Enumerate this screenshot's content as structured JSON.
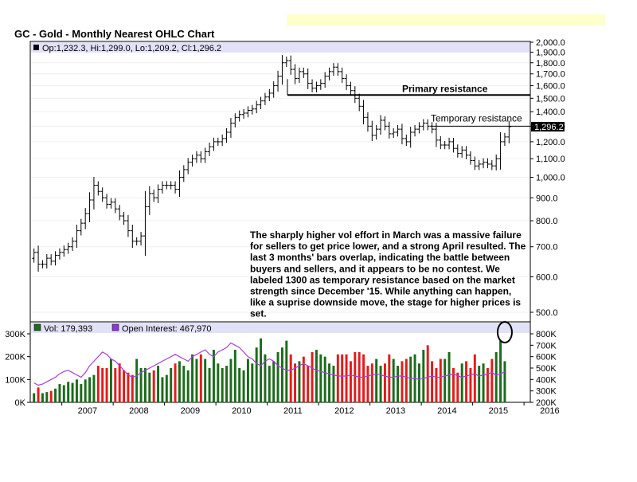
{
  "chart_data": {
    "type": "ohlc",
    "title": "GC - Gold - Monthly Nearest OHLC Chart",
    "info_line": "Op:1,232.3, Hi:1,299.0, Lo:1,209.2, Cl:1,296.2",
    "price_axis": {
      "ylim": [
        500,
        2000
      ],
      "scale": "log",
      "ticks": [
        "2,000.0",
        "1,900.0",
        "1,800.0",
        "1,700.0",
        "1,600.0",
        "1,500.0",
        "1,400.0",
        "1,300.0",
        "1,200.0",
        "1,100.0",
        "1,000.0",
        "900.0",
        "800.0",
        "700.0",
        "600.0",
        "500.0"
      ]
    },
    "last_price_label": "1,296.2",
    "x_ticks": [
      "2007",
      "2008",
      "2009",
      "2010",
      "2011",
      "2012",
      "2013",
      "2014",
      "2015",
      "2016"
    ],
    "price_series_approx": [
      680,
      640,
      640,
      660,
      650,
      670,
      680,
      690,
      700,
      720,
      760,
      790,
      830,
      890,
      960,
      930,
      900,
      870,
      880,
      850,
      820,
      800,
      760,
      720,
      720,
      740,
      860,
      920,
      900,
      940,
      960,
      960,
      960,
      940,
      1000,
      1040,
      1080,
      1100,
      1120,
      1100,
      1140,
      1170,
      1200,
      1200,
      1220,
      1260,
      1320,
      1360,
      1380,
      1390,
      1410,
      1420,
      1450,
      1480,
      1510,
      1540,
      1600,
      1680,
      1800,
      1820,
      1740,
      1660,
      1720,
      1700,
      1620,
      1580,
      1600,
      1620,
      1680,
      1720,
      1760,
      1720,
      1660,
      1600,
      1560,
      1500,
      1440,
      1360,
      1300,
      1240,
      1280,
      1340,
      1300,
      1250,
      1260,
      1280,
      1220,
      1200,
      1260,
      1280,
      1300,
      1320,
      1300,
      1280,
      1210,
      1180,
      1180,
      1200,
      1160,
      1130,
      1150,
      1120,
      1090,
      1060,
      1070,
      1080,
      1070,
      1060,
      1100,
      1200,
      1230,
      1296
    ],
    "annotations": {
      "primary_resistance": {
        "label": "Primary resistance",
        "price": 1525
      },
      "temporary_resistance": {
        "label": "Temporary resistance",
        "price": 1300
      },
      "commentary": [
        "The sharply higher vol effort in March was a massive failure",
        "for sellers to get price lower, and a strong April resulted.  The",
        "last 3 months' bars overlap, indicating the battle between",
        "buyers and sellers, and it appears to be no contest.  We",
        "labeled 1300 as temporary resistance based on the market",
        "strength since December '15.  While anything can happen,",
        "like a suprise downside move, the stage for higher prices is",
        "set."
      ]
    },
    "volume_panel": {
      "vol_label": "Vol: 179,393",
      "oi_label": "Open Interest: 467,970",
      "left_ticks": [
        "300K",
        "200K",
        "100K",
        "0K"
      ],
      "right_ticks": [
        "800K",
        "700K",
        "600K",
        "500K",
        "400K",
        "300K",
        "200K"
      ],
      "volume_series_approx": [
        40,
        65,
        40,
        45,
        50,
        60,
        80,
        75,
        90,
        85,
        100,
        80,
        100,
        110,
        120,
        160,
        150,
        150,
        190,
        150,
        170,
        140,
        130,
        120,
        190,
        150,
        150,
        130,
        140,
        160,
        110,
        120,
        150,
        170,
        180,
        160,
        140,
        210,
        190,
        210,
        190,
        150,
        230,
        170,
        150,
        160,
        190,
        230,
        150,
        140,
        190,
        170,
        240,
        280,
        210,
        160,
        180,
        220,
        240,
        270,
        210,
        170,
        180,
        200,
        160,
        220,
        230,
        210,
        200,
        170,
        160,
        210,
        210,
        210,
        180,
        220,
        220,
        210,
        160,
        170,
        190,
        160,
        170,
        210,
        190,
        160,
        180,
        190,
        200,
        210,
        170,
        230,
        250,
        180,
        150,
        190,
        190,
        220,
        150,
        130,
        170,
        180,
        150,
        210,
        160,
        170,
        150,
        190,
        220,
        270,
        180
      ],
      "oi_series_approx": [
        370,
        350,
        360,
        380,
        400,
        420,
        450,
        470,
        480,
        460,
        440,
        420,
        460,
        520,
        560,
        600,
        640,
        620,
        580,
        560,
        520,
        480,
        440,
        420,
        430,
        460,
        480,
        500,
        520,
        540,
        560,
        580,
        600,
        620,
        600,
        580,
        560,
        600,
        620,
        640,
        660,
        620,
        600,
        640,
        660,
        680,
        720,
        700,
        680,
        640,
        600,
        580,
        540,
        520,
        560,
        580,
        560,
        520,
        500,
        480,
        480,
        500,
        520,
        540,
        520,
        500,
        480,
        470,
        460,
        450,
        440,
        430,
        430,
        430,
        440,
        430,
        420,
        420,
        430,
        440,
        450,
        440,
        430,
        420,
        420,
        430,
        430,
        420,
        410,
        410,
        400,
        410,
        420,
        430,
        420,
        420,
        430,
        440,
        450,
        430,
        420,
        430,
        440,
        450,
        430,
        440,
        450,
        460,
        440,
        450,
        468
      ]
    }
  },
  "colors": {
    "header_band": "#e1e1f7",
    "up_volume": "#1b6b1b",
    "down_volume": "#e31b1b",
    "oi_line": "#a640d8",
    "oi_swatch": "#8a3ad0",
    "vol_swatch": "#1b6b1b",
    "circle": "#000000"
  }
}
